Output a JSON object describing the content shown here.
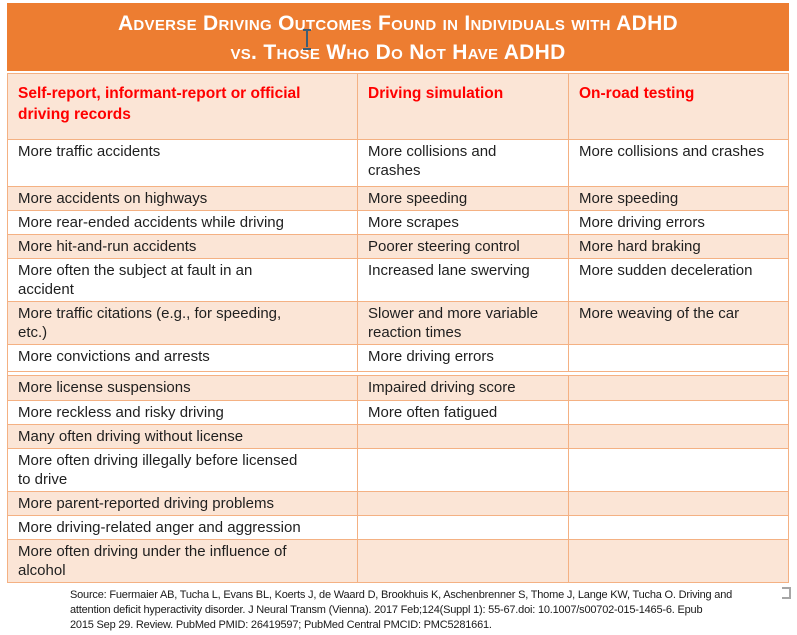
{
  "title": {
    "line1": "Adverse Driving Outcomes Found in Individuals with ADHD",
    "line2": "vs. Those Who Do Not Have ADHD"
  },
  "table": {
    "headers": [
      "Self-report, informant-report or official\ndriving records",
      "Driving simulation",
      "On-road testing"
    ],
    "rows": [
      [
        "More traffic accidents",
        "More collisions and\ncrashes",
        "More collisions and crashes"
      ],
      [
        "More accidents on highways",
        "More speeding",
        "More speeding"
      ],
      [
        "More rear-ended accidents while driving",
        "More scrapes",
        "More driving errors"
      ],
      [
        "More hit-and-run accidents",
        "Poorer steering control",
        "More hard braking"
      ],
      [
        "More often the subject at fault in an\naccident",
        "Increased lane swerving",
        "More sudden deceleration"
      ],
      [
        "More traffic citations (e.g., for speeding,\netc.)",
        "Slower and more variable\nreaction times",
        "More weaving of the car"
      ],
      [
        "More convictions and arrests",
        "More driving errors",
        ""
      ],
      [
        "More license suspensions",
        "Impaired driving score",
        ""
      ],
      [
        "More reckless and risky driving",
        "More often fatigued",
        ""
      ],
      [
        "Many often driving without license",
        "",
        ""
      ],
      [
        "More often driving illegally before licensed\nto drive",
        "",
        ""
      ],
      [
        "More parent-reported driving problems",
        "",
        ""
      ],
      [
        "More driving-related anger and aggression",
        "",
        ""
      ],
      [
        "More often driving under the influence of\nalcohol",
        "",
        ""
      ]
    ],
    "separator_after_row": 7
  },
  "source": "Source: Fuermaier AB, Tucha L, Evans BL, Koerts J, de Waard D, Brookhuis K, Aschenbrenner S, Thome J, Lange KW, Tucha O. Driving and\nattention deficit hyperactivity disorder. J Neural Transm (Vienna). 2017 Feb;124(Suppl 1): 55-67.doi: 10.1007/s00702-015-1465-6. Epub\n2015 Sep 29. Review. PubMed PMID: 26419597; PubMed Central PMCID: PMC5281661.",
  "colors": {
    "banner_orange": "#ED7D31",
    "row_peach": "#FBE5D6",
    "border_orange": "#F4B183",
    "header_red": "#FF0000",
    "body_text": "#1F1F1F",
    "title_text": "#FFFFFF"
  },
  "icons": {
    "text_cursor": "i-beam-text-cursor",
    "selection_handle": "selection-handle-bracket"
  }
}
